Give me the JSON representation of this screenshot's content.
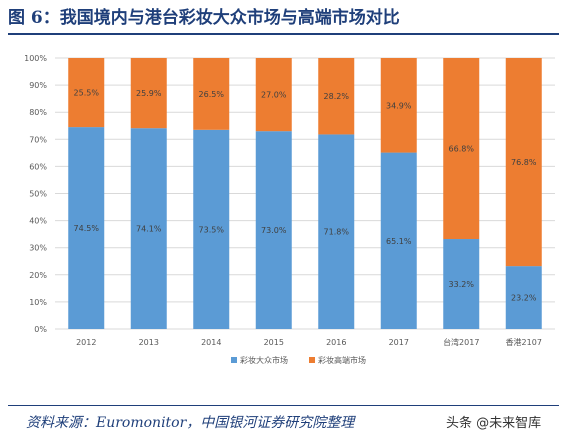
{
  "header": {
    "title": "图 6：我国境内与港台彩妆大众市场与高端市场对比"
  },
  "footer": {
    "source": "资料来源：Euromonitor，中国银河证券研究院整理",
    "watermark": "头条 @未来智库"
  },
  "colors": {
    "mass": "#5b9bd5",
    "premium": "#ed7d31",
    "heading": "#1f3f7a"
  },
  "chart_data": {
    "type": "bar",
    "stacked": true,
    "percent": true,
    "categories": [
      "2012",
      "2013",
      "2014",
      "2015",
      "2016",
      "2017",
      "台湾2017",
      "香港2107"
    ],
    "series": [
      {
        "name": "彩妆大众市场",
        "values": [
          74.5,
          74.1,
          73.5,
          73.0,
          71.8,
          65.1,
          33.2,
          23.2
        ],
        "labels": [
          "74.5%",
          "74.1%",
          "73.5%",
          "73.0%",
          "71.8%",
          "65.1%",
          "33.2%",
          "23.2%"
        ]
      },
      {
        "name": "彩妆高端市场",
        "values": [
          25.5,
          25.9,
          26.5,
          27.0,
          28.2,
          34.9,
          66.8,
          76.8
        ],
        "labels": [
          "25.5%",
          "25.9%",
          "26.5%",
          "27.0%",
          "28.2%",
          "34.9%",
          "66.8%",
          "76.8%"
        ]
      }
    ],
    "ylim": [
      0,
      100
    ],
    "yticks": [
      "0%",
      "10%",
      "20%",
      "30%",
      "40%",
      "50%",
      "60%",
      "70%",
      "80%",
      "90%",
      "100%"
    ],
    "grid": true,
    "legend": "bottom"
  }
}
